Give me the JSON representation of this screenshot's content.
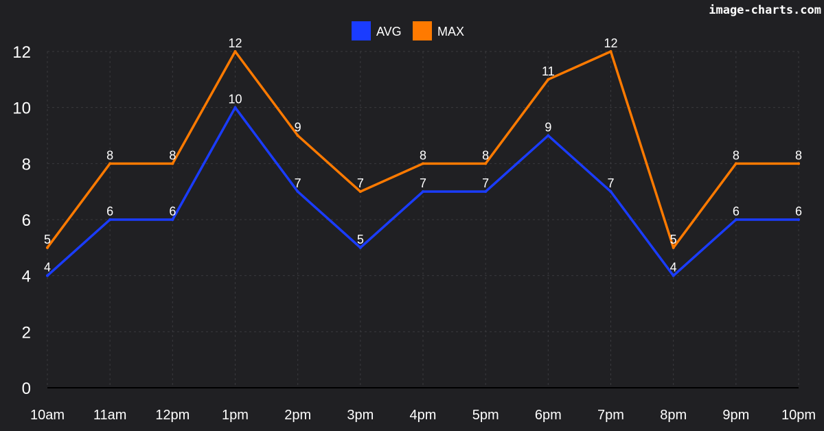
{
  "watermark": "image-charts.com",
  "chart_data": {
    "type": "line",
    "categories": [
      "10am",
      "11am",
      "12pm",
      "1pm",
      "2pm",
      "3pm",
      "4pm",
      "5pm",
      "6pm",
      "7pm",
      "8pm",
      "9pm",
      "10pm"
    ],
    "series": [
      {
        "name": "AVG",
        "color": "#1a3cff",
        "values": [
          4,
          6,
          6,
          10,
          7,
          5,
          7,
          7,
          9,
          7,
          4,
          6,
          6
        ]
      },
      {
        "name": "MAX",
        "color": "#ff7a00",
        "values": [
          5,
          8,
          8,
          12,
          9,
          7,
          8,
          8,
          11,
          12,
          5,
          8,
          8
        ]
      }
    ],
    "ylim": [
      0,
      12
    ],
    "yticks": [
      0,
      2,
      4,
      6,
      8,
      10,
      12
    ],
    "grid": true,
    "legend": "top-center",
    "data_labels": true
  }
}
